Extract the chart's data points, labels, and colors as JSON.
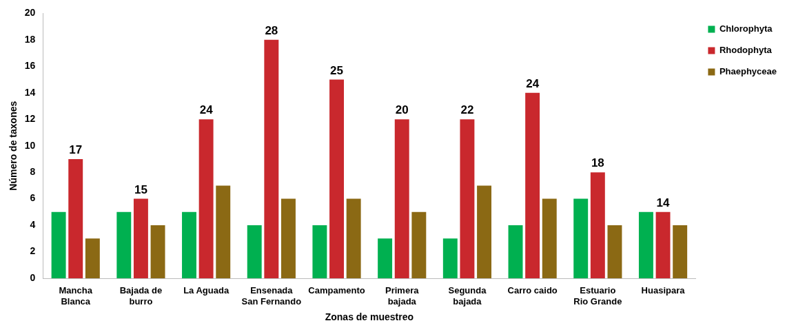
{
  "chart_data": {
    "type": "bar",
    "xlabel": "Zonas de muestreo",
    "ylabel": "Número de taxones",
    "categories": [
      "Mancha Blanca",
      "Bajada de burro",
      "La Aguada",
      "Ensenada San Fernando",
      "Campamento",
      "Primera bajada",
      "Segunda bajada",
      "Carro caido",
      "Estuario Rio Grande",
      "Huasipara"
    ],
    "series": [
      {
        "name": "Chlorophyta",
        "color": "#00b050",
        "values": [
          5,
          5,
          5,
          4,
          4,
          3,
          3,
          4,
          6,
          5
        ]
      },
      {
        "name": "Rhodophyta",
        "color": "#c9282d",
        "values": [
          9,
          6,
          12,
          18,
          15,
          12,
          12,
          14,
          8,
          5
        ]
      },
      {
        "name": "Phaephyceae",
        "color": "#8b6914",
        "values": [
          3,
          4,
          7,
          6,
          6,
          5,
          7,
          6,
          4,
          4
        ]
      }
    ],
    "ylim": [
      0,
      20
    ],
    "yticks": [
      0,
      2,
      4,
      6,
      8,
      10,
      12,
      14,
      16,
      18,
      20
    ],
    "grid": false,
    "legend": "top right",
    "totals": [
      "17",
      "15",
      "24",
      "28",
      "25",
      "20",
      "22",
      "24",
      "18",
      "14"
    ]
  }
}
